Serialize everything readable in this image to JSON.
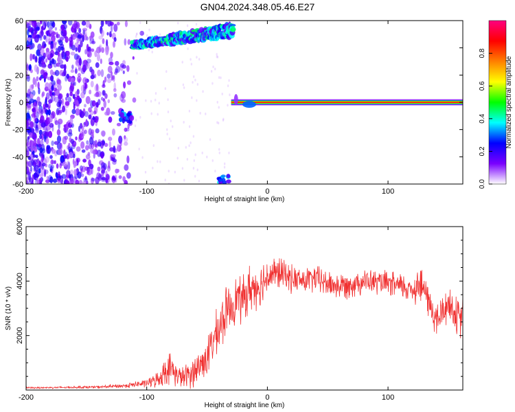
{
  "title": "GN04.2024.348.05.46.E27",
  "chart_data": [
    {
      "type": "heatmap",
      "title": "GN04.2024.348.05.46.E27",
      "xlabel": "Height of straight line (km)",
      "ylabel": "Frequency (Hz)",
      "xlim": [
        -200,
        162
      ],
      "ylim": [
        -60,
        60
      ],
      "xticks": [
        -200,
        -100,
        0,
        100
      ],
      "yticks": [
        60,
        40,
        20,
        0,
        -20,
        -40,
        -60
      ],
      "colorbar": {
        "label": "Normalized spectral amplitude",
        "ticks": [
          "0.0",
          "0.2",
          "0.4",
          "0.6",
          "0.8"
        ],
        "range": [
          0,
          1
        ],
        "colors": [
          "#ffffff",
          "#7a00ff",
          "#0000ff",
          "#00ffff",
          "#00ff00",
          "#ffff00",
          "#ff8000",
          "#ff0000",
          "#ff0080"
        ]
      },
      "features": [
        {
          "name": "noise_scatter",
          "x": [
            -200,
            -110
          ],
          "y": [
            -60,
            60
          ],
          "amplitude": 0.1
        },
        {
          "name": "upper_band",
          "x": [
            -112,
            -28
          ],
          "y_start": [
            40,
            44
          ],
          "y_end": [
            48,
            58
          ],
          "amplitude": 0.35
        },
        {
          "name": "blob",
          "x": [
            -122,
            -112
          ],
          "y": [
            -14,
            -6
          ],
          "amplitude": 0.3
        },
        {
          "name": "zero_line",
          "x": [
            -30,
            162
          ],
          "y": 0,
          "amplitude": 0.85
        },
        {
          "name": "lower_blob",
          "x": [
            -42,
            -32
          ],
          "y": [
            -60,
            -54
          ],
          "amplitude": 0.3
        }
      ]
    },
    {
      "type": "line",
      "xlabel": "Height of straight line (km)",
      "ylabel": "SNR (10 * v/v)",
      "xlim": [
        -200,
        162
      ],
      "ylim": [
        0,
        6000
      ],
      "xticks": [
        -200,
        -100,
        0,
        100
      ],
      "yticks": [
        2000,
        4000,
        6000
      ],
      "color": "#f03030",
      "series": [
        {
          "x": [
            -200,
            -180,
            -160,
            -140,
            -120,
            -100,
            -90,
            -85,
            -80,
            -75,
            -70,
            -60,
            -50,
            -45,
            -40,
            -35,
            -30,
            -25,
            -20,
            -15,
            -10,
            -5,
            0,
            10,
            20,
            30,
            40,
            50,
            60,
            70,
            80,
            90,
            100,
            110,
            120,
            125,
            130,
            140,
            150,
            160,
            162
          ],
          "y": [
            80,
            90,
            100,
            110,
            150,
            250,
            400,
            700,
            800,
            550,
            450,
            700,
            1200,
            1800,
            2200,
            2800,
            3100,
            3400,
            3300,
            3700,
            3800,
            3900,
            4200,
            4300,
            4100,
            4000,
            4100,
            3900,
            3800,
            3900,
            4000,
            3950,
            3900,
            3800,
            3700,
            3900,
            3700,
            2500,
            3200,
            2500,
            3000
          ],
          "noise": [
            30,
            35,
            40,
            50,
            80,
            150,
            300,
            500,
            600,
            400,
            400,
            600,
            700,
            800,
            900,
            900,
            900,
            800,
            900,
            900,
            800,
            800,
            700,
            600,
            500,
            500,
            500,
            500,
            500,
            500,
            450,
            450,
            450,
            500,
            500,
            800,
            600,
            700,
            700,
            700,
            700
          ]
        }
      ]
    }
  ]
}
